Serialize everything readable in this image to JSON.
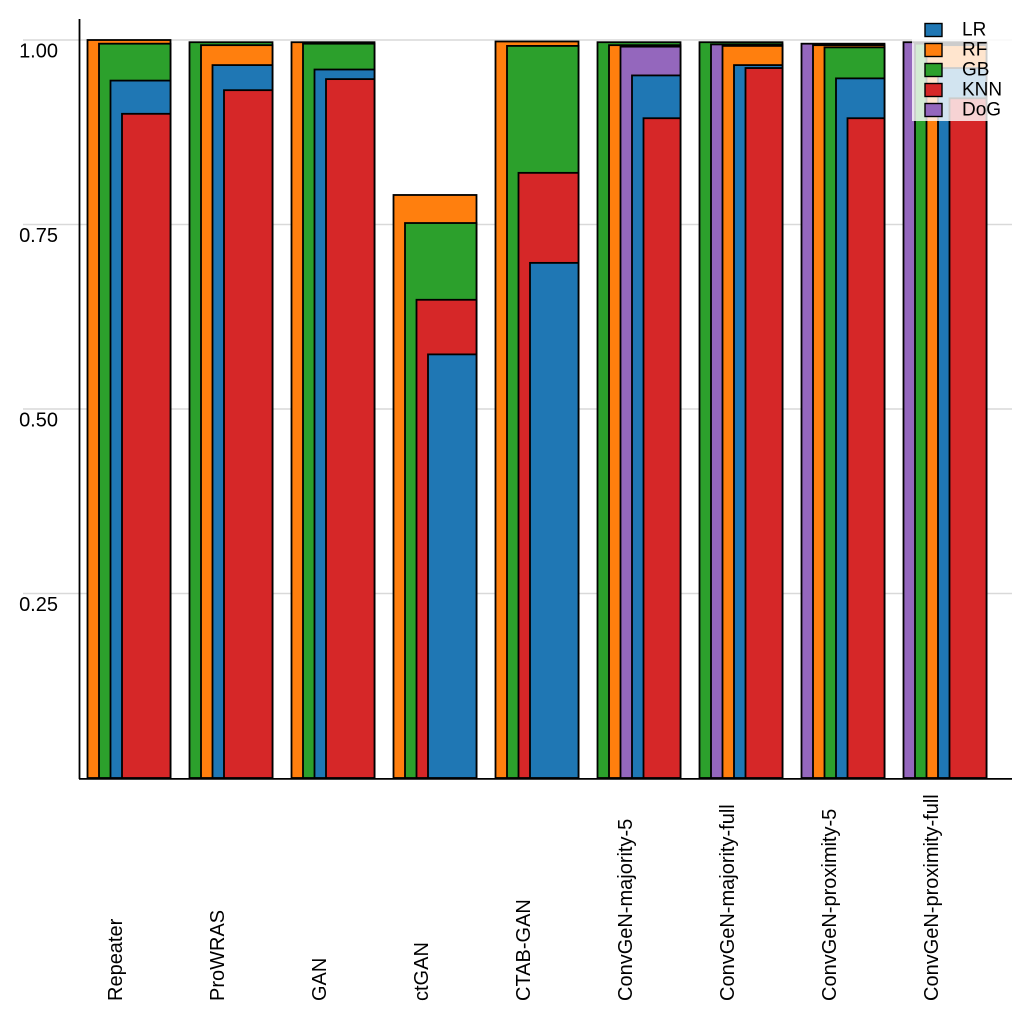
{
  "figure": {
    "background": "#ffffff",
    "plot_area_background": "#ffffff"
  },
  "chart_data": {
    "type": "bar",
    "variant": "overlapping-nested-bars",
    "title": "",
    "xlabel": "",
    "ylabel": "",
    "ylim": [
      0,
      1.02
    ],
    "grid": "horizontal",
    "gridline_color": "#d9d9d9",
    "axis_color": "#000000",
    "bar_stroke_color": "#000000",
    "categories": [
      "Repeater",
      "ProWRAS",
      "GAN",
      "ctGAN",
      "CTAB-GAN",
      "ConvGeN-majority-5",
      "ConvGeN-majority-full",
      "ConvGeN-proximity-5",
      "ConvGeN-proximity-full"
    ],
    "yticks": [
      {
        "value": 1.0,
        "label": "1.00"
      },
      {
        "value": 0.75,
        "label": "0.75"
      },
      {
        "value": 0.5,
        "label": "0.50"
      },
      {
        "value": 0.25,
        "label": "0.25"
      }
    ],
    "series": [
      {
        "name": "LR",
        "color": "#1f77b4",
        "values": [
          0.945,
          0.966,
          0.96,
          0.574,
          0.698,
          0.952,
          0.966,
          0.948,
          0.962
        ]
      },
      {
        "name": "RF",
        "color": "#ff7f0e",
        "values": [
          1.0,
          0.993,
          0.997,
          0.79,
          0.998,
          0.993,
          0.992,
          0.993,
          0.993
        ]
      },
      {
        "name": "GB",
        "color": "#2ca02c",
        "values": [
          0.995,
          0.997,
          0.995,
          0.752,
          0.992,
          0.997,
          0.997,
          0.99,
          0.995
        ]
      },
      {
        "name": "KNN",
        "color": "#d62728",
        "values": [
          0.9,
          0.932,
          0.947,
          0.648,
          0.82,
          0.894,
          0.962,
          0.894,
          0.921
        ]
      },
      {
        "name": "DoG",
        "color": "#9467bd",
        "values": [
          null,
          null,
          null,
          null,
          null,
          0.991,
          0.994,
          0.995,
          0.997
        ]
      }
    ],
    "legend": {
      "position": "upper-right",
      "background": "rgba(255,255,255,0.8)",
      "items": [
        "LR",
        "RF",
        "GB",
        "KNN",
        "DoG"
      ]
    }
  }
}
